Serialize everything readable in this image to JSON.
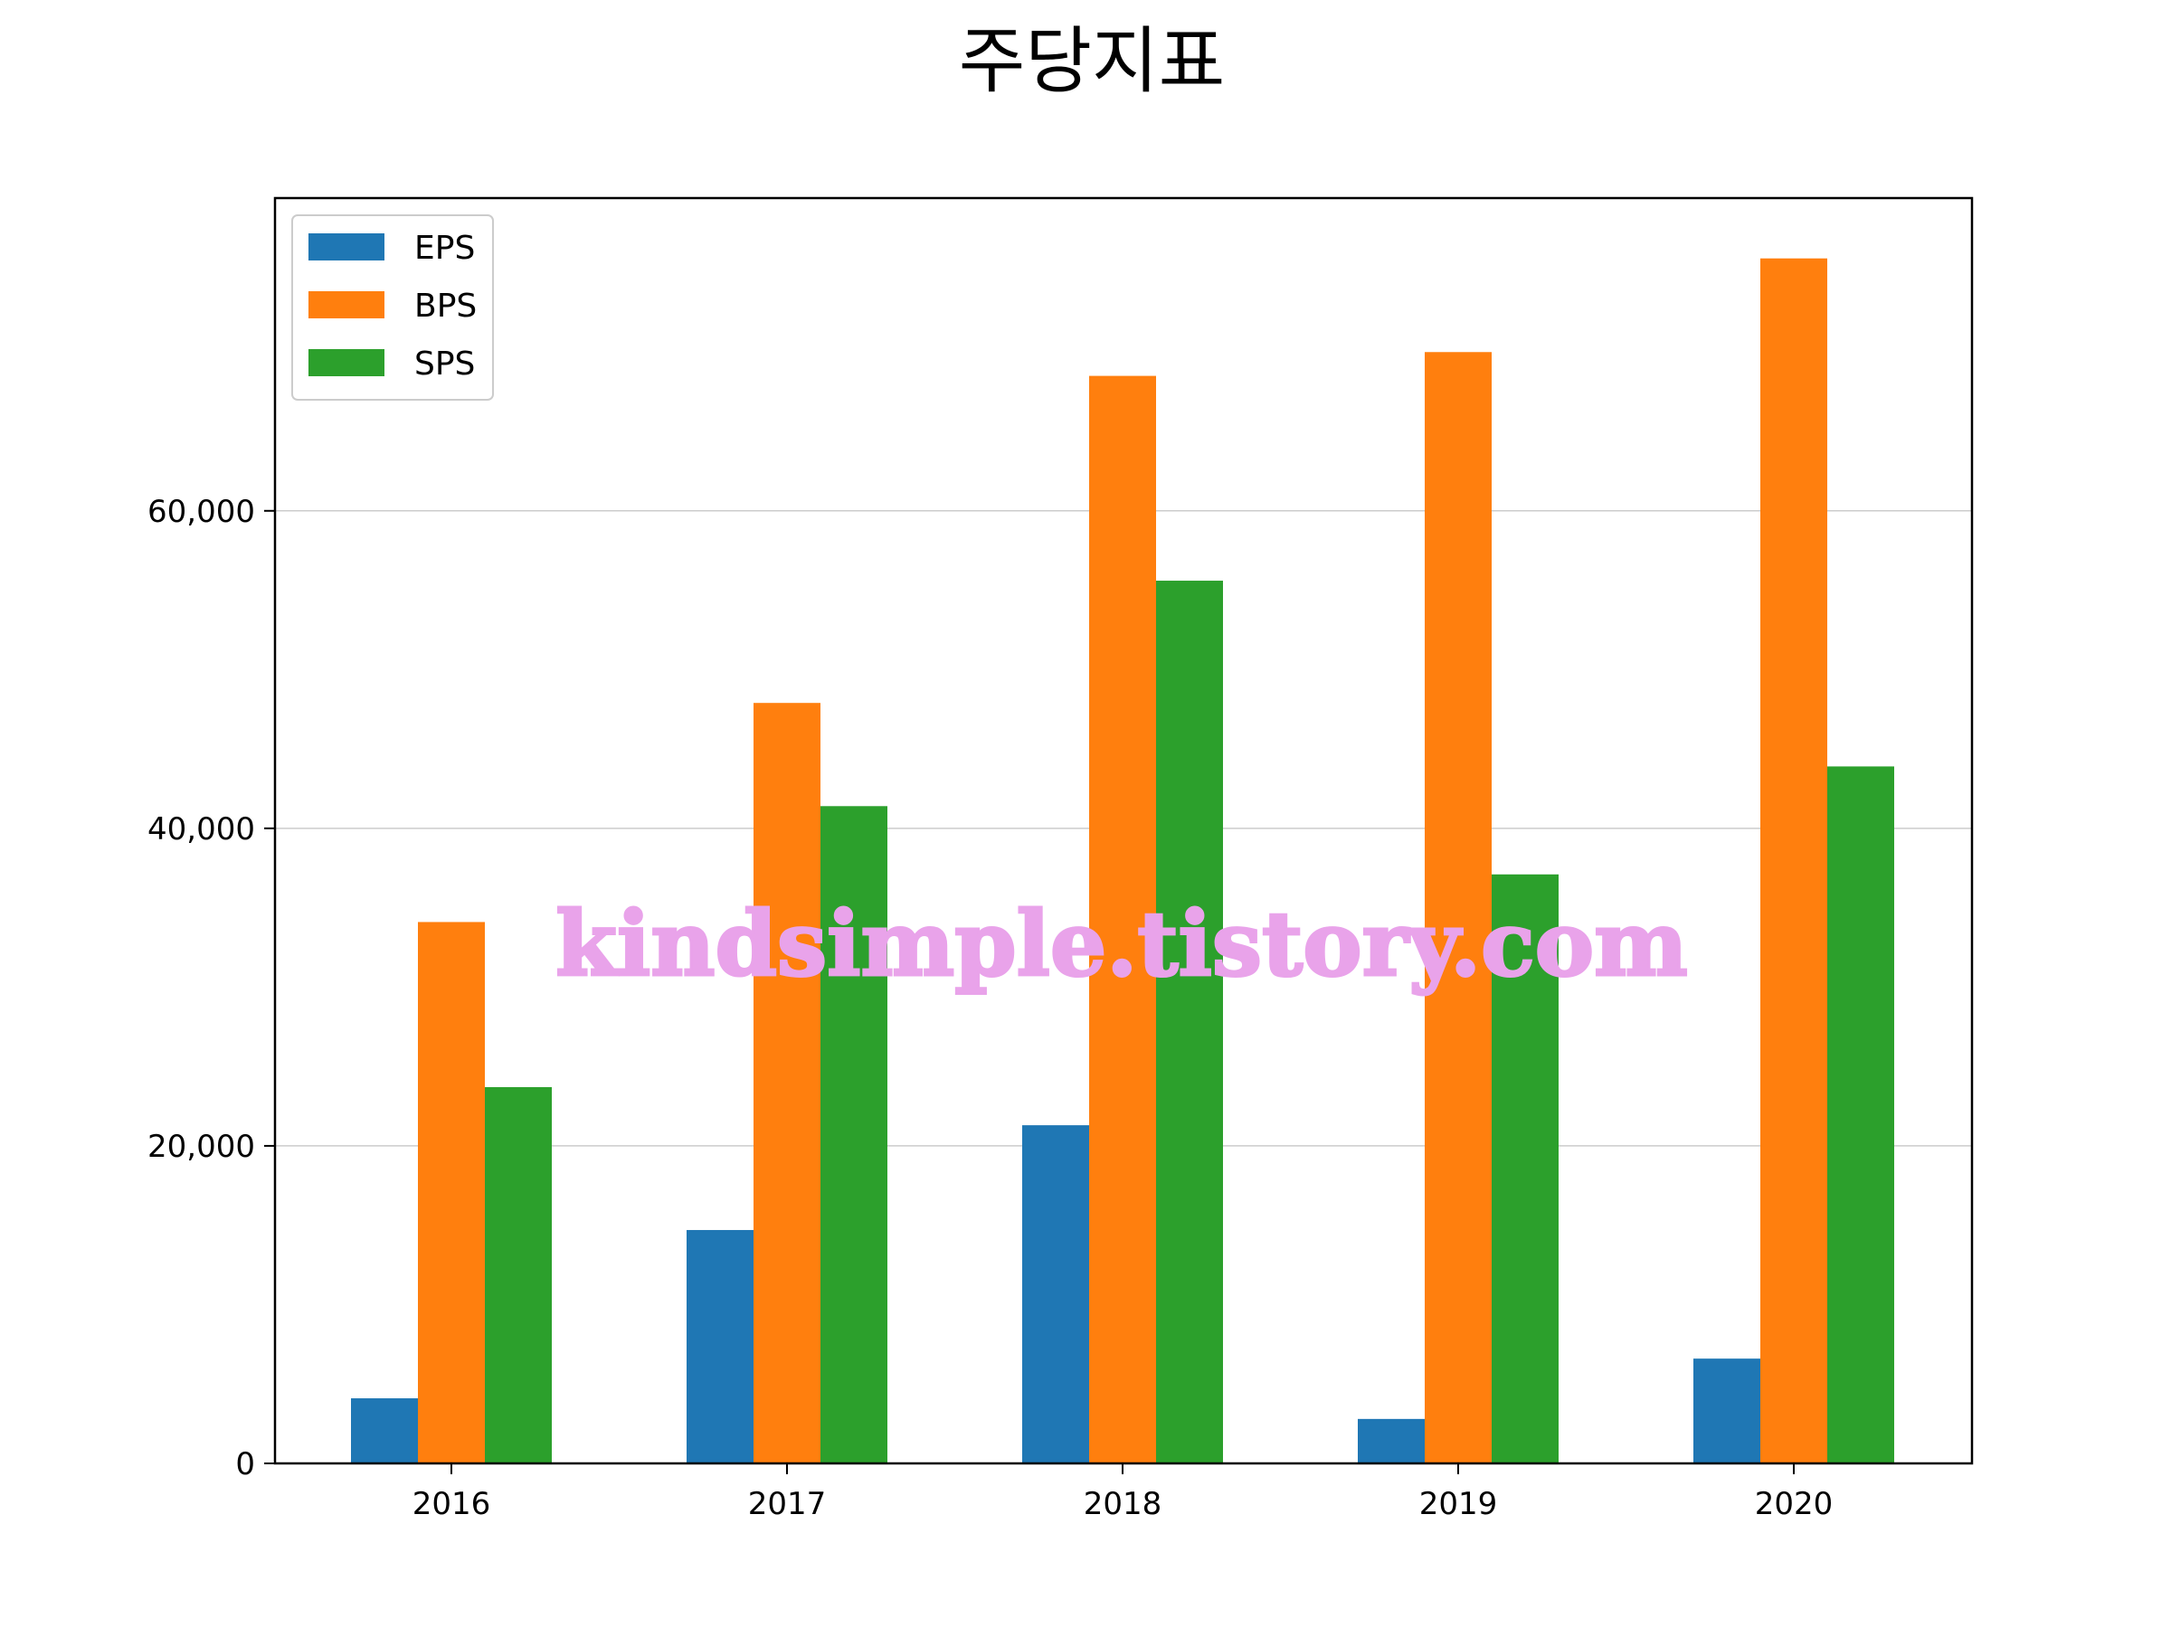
{
  "chart_data": {
    "type": "bar",
    "title": "주당지표",
    "xlabel": "",
    "ylabel": "",
    "categories": [
      "2016",
      "2017",
      "2018",
      "2019",
      "2020"
    ],
    "series": [
      {
        "name": "EPS",
        "color": "#1f77b4",
        "values": [
          4100,
          14700,
          21300,
          2800,
          6600
        ]
      },
      {
        "name": "BPS",
        "color": "#ff7f0e",
        "values": [
          34100,
          47900,
          68500,
          70000,
          75900
        ]
      },
      {
        "name": "SPS",
        "color": "#2ca02c",
        "values": [
          23700,
          41400,
          55600,
          37100,
          43900
        ]
      }
    ],
    "ylim": [
      0,
      79700
    ],
    "yticks": [
      0,
      20000,
      40000,
      60000
    ],
    "ytick_labels": [
      "0",
      "20,000",
      "40,000",
      "60,000"
    ],
    "grid": "y",
    "legend": "top-left"
  },
  "watermark": "kindsimple.tistory.com"
}
